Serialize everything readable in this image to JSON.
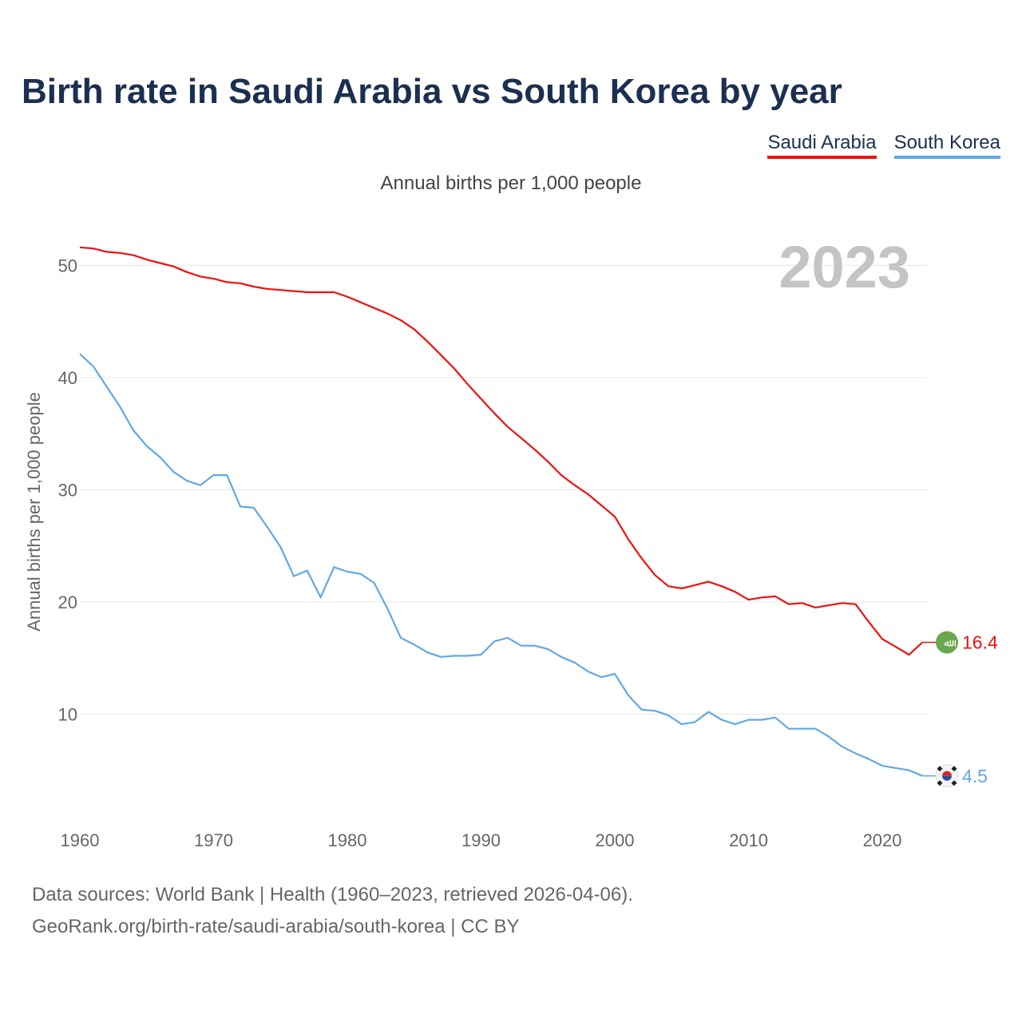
{
  "title": "Birth rate in Saudi Arabia vs South Korea by year",
  "subtitle": "Annual births per 1,000 people",
  "footer": {
    "line1": "Data sources: World Bank | Health (1960–2023, retrieved 2026-04-06).",
    "line2": "GeoRank.org/birth-rate/saudi-arabia/south-korea | CC BY"
  },
  "flag_text": {
    "saudi": "ﷲ"
  },
  "chart_data": {
    "type": "line",
    "title": "Birth rate in Saudi Arabia vs South Korea by year",
    "ylabel": "Annual births per 1,000 people",
    "xlabel": "",
    "xlim": [
      1960,
      2023
    ],
    "ylim": [
      0,
      55
    ],
    "xticks": [
      1960,
      1970,
      1980,
      1990,
      2000,
      2010,
      2020
    ],
    "yticks": [
      10,
      20,
      30,
      40,
      50
    ],
    "year_label": "2023",
    "x": [
      1960,
      1961,
      1962,
      1963,
      1964,
      1965,
      1966,
      1967,
      1968,
      1969,
      1970,
      1971,
      1972,
      1973,
      1974,
      1975,
      1976,
      1977,
      1978,
      1979,
      1980,
      1981,
      1982,
      1983,
      1984,
      1985,
      1986,
      1987,
      1988,
      1989,
      1990,
      1991,
      1992,
      1993,
      1994,
      1995,
      1996,
      1997,
      1998,
      1999,
      2000,
      2001,
      2002,
      2003,
      2004,
      2005,
      2006,
      2007,
      2008,
      2009,
      2010,
      2011,
      2012,
      2013,
      2014,
      2015,
      2016,
      2017,
      2018,
      2019,
      2020,
      2021,
      2022,
      2023
    ],
    "series": [
      {
        "name": "Saudi Arabia",
        "color": "#ee1111",
        "end_label": "16.4",
        "values": [
          51.6,
          51.5,
          51.2,
          51.1,
          50.9,
          50.5,
          50.2,
          49.9,
          49.4,
          49.0,
          48.8,
          48.5,
          48.4,
          48.1,
          47.9,
          47.8,
          47.7,
          47.6,
          47.6,
          47.6,
          47.2,
          46.7,
          46.2,
          45.7,
          45.1,
          44.3,
          43.2,
          42.0,
          40.8,
          39.4,
          38.1,
          36.8,
          35.6,
          34.6,
          33.6,
          32.5,
          31.3,
          30.4,
          29.6,
          28.6,
          27.6,
          25.6,
          23.9,
          22.4,
          21.4,
          21.2,
          21.5,
          21.8,
          21.4,
          20.9,
          20.2,
          20.4,
          20.5,
          19.8,
          19.9,
          19.5,
          19.7,
          19.9,
          19.8,
          18.2,
          16.7,
          16.0,
          15.3,
          16.4
        ]
      },
      {
        "name": "South Korea",
        "color": "#62a8e5",
        "end_label": "4.5",
        "values": [
          42.1,
          41.0,
          39.2,
          37.4,
          35.3,
          33.9,
          32.9,
          31.6,
          30.8,
          30.4,
          31.3,
          31.3,
          28.5,
          28.4,
          26.7,
          24.9,
          22.3,
          22.8,
          20.4,
          23.1,
          22.7,
          22.5,
          21.7,
          19.4,
          16.8,
          16.2,
          15.5,
          15.1,
          15.2,
          15.2,
          15.3,
          16.5,
          16.8,
          16.1,
          16.1,
          15.8,
          15.1,
          14.6,
          13.8,
          13.3,
          13.6,
          11.7,
          10.4,
          10.3,
          9.9,
          9.1,
          9.3,
          10.2,
          9.5,
          9.1,
          9.5,
          9.5,
          9.7,
          8.7,
          8.7,
          8.7,
          8.0,
          7.1,
          6.5,
          6.0,
          5.4,
          5.2,
          5.0,
          4.5
        ]
      }
    ]
  }
}
